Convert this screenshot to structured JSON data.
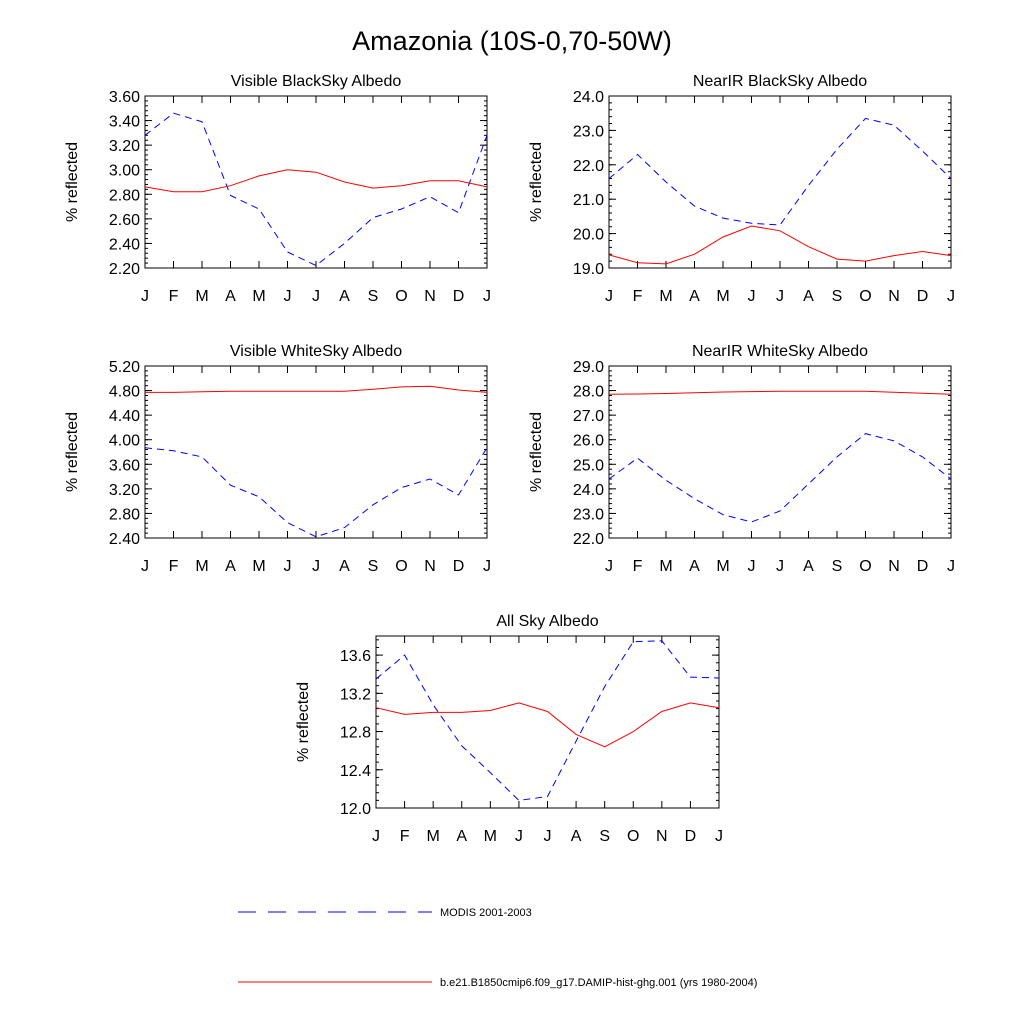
{
  "title": "Amazonia (10S-0,70-50W)",
  "colors": {
    "modis": "#0000ff",
    "model": "#ff0000",
    "axis": "#000000"
  },
  "legend": {
    "modis_label": "MODIS 2001-2003",
    "model_label": "b.e21.B1850cmip6.f09_g17.DAMIP-hist-ghg.001 (yrs 1980-2004)"
  },
  "chart_data": [
    {
      "type": "line",
      "title": "Visible BlackSky Albedo",
      "ylabel": "% reflected",
      "xlabel": "",
      "categories": [
        "J",
        "F",
        "M",
        "A",
        "M",
        "J",
        "J",
        "A",
        "S",
        "O",
        "N",
        "D",
        "J"
      ],
      "ylim": [
        2.2,
        3.6
      ],
      "yticks": [
        "2.20",
        "2.40",
        "2.60",
        "2.80",
        "3.00",
        "3.20",
        "3.40",
        "3.60"
      ],
      "series": [
        {
          "name": "MODIS 2001-2003",
          "style": "dashed",
          "values": [
            3.28,
            3.46,
            3.39,
            2.79,
            2.68,
            2.33,
            2.22,
            2.4,
            2.61,
            2.68,
            2.78,
            2.65,
            3.28
          ]
        },
        {
          "name": "b.e21.B1850cmip6.f09_g17.DAMIP-hist-ghg.001 (yrs 1980-2004)",
          "style": "solid",
          "values": [
            2.86,
            2.82,
            2.82,
            2.87,
            2.95,
            3.0,
            2.98,
            2.9,
            2.85,
            2.87,
            2.91,
            2.91,
            2.86
          ]
        }
      ]
    },
    {
      "type": "line",
      "title": "NearIR BlackSky Albedo",
      "ylabel": "% reflected",
      "xlabel": "",
      "categories": [
        "J",
        "F",
        "M",
        "A",
        "M",
        "J",
        "J",
        "A",
        "S",
        "O",
        "N",
        "D",
        "J"
      ],
      "ylim": [
        19.0,
        24.0
      ],
      "yticks": [
        "19.0",
        "20.0",
        "21.0",
        "22.0",
        "23.0",
        "24.0"
      ],
      "series": [
        {
          "name": "MODIS 2001-2003",
          "style": "dashed",
          "values": [
            21.6,
            22.3,
            21.5,
            20.8,
            20.45,
            20.3,
            20.25,
            21.4,
            22.45,
            23.35,
            23.15,
            22.4,
            21.6
          ]
        },
        {
          "name": "b.e21.B1850cmip6.f09_g17.DAMIP-hist-ghg.001 (yrs 1980-2004)",
          "style": "solid",
          "values": [
            19.38,
            19.15,
            19.12,
            19.4,
            19.9,
            20.22,
            20.08,
            19.62,
            19.26,
            19.2,
            19.36,
            19.48,
            19.36
          ]
        }
      ]
    },
    {
      "type": "line",
      "title": "Visible WhiteSky Albedo",
      "ylabel": "% reflected",
      "xlabel": "",
      "categories": [
        "J",
        "F",
        "M",
        "A",
        "M",
        "J",
        "J",
        "A",
        "S",
        "O",
        "N",
        "D",
        "J"
      ],
      "ylim": [
        2.4,
        5.2
      ],
      "yticks": [
        "2.40",
        "2.80",
        "3.20",
        "3.60",
        "4.00",
        "4.40",
        "4.80",
        "5.20"
      ],
      "series": [
        {
          "name": "MODIS 2001-2003",
          "style": "dashed",
          "values": [
            3.87,
            3.82,
            3.72,
            3.26,
            3.07,
            2.65,
            2.42,
            2.57,
            2.94,
            3.22,
            3.36,
            3.1,
            3.87
          ]
        },
        {
          "name": "b.e21.B1850cmip6.f09_g17.DAMIP-hist-ghg.001 (yrs 1980-2004)",
          "style": "solid",
          "values": [
            4.77,
            4.77,
            4.78,
            4.79,
            4.79,
            4.79,
            4.79,
            4.79,
            4.82,
            4.86,
            4.87,
            4.81,
            4.77
          ]
        }
      ]
    },
    {
      "type": "line",
      "title": "NearIR WhiteSky Albedo",
      "ylabel": "% reflected",
      "xlabel": "",
      "categories": [
        "J",
        "F",
        "M",
        "A",
        "M",
        "J",
        "J",
        "A",
        "S",
        "O",
        "N",
        "D",
        "J"
      ],
      "ylim": [
        22.0,
        29.0
      ],
      "yticks": [
        "22.0",
        "23.0",
        "24.0",
        "25.0",
        "26.0",
        "27.0",
        "28.0",
        "29.0"
      ],
      "series": [
        {
          "name": "MODIS 2001-2003",
          "style": "dashed",
          "values": [
            24.4,
            25.25,
            24.35,
            23.6,
            22.95,
            22.65,
            23.1,
            24.2,
            25.3,
            26.25,
            25.95,
            25.3,
            24.4
          ]
        },
        {
          "name": "b.e21.B1850cmip6.f09_g17.DAMIP-hist-ghg.001 (yrs 1980-2004)",
          "style": "solid",
          "values": [
            27.85,
            27.86,
            27.88,
            27.91,
            27.94,
            27.96,
            27.97,
            27.97,
            27.97,
            27.97,
            27.93,
            27.89,
            27.85
          ]
        }
      ]
    },
    {
      "type": "line",
      "title": "All Sky Albedo",
      "ylabel": "% reflected",
      "xlabel": "",
      "categories": [
        "J",
        "F",
        "M",
        "A",
        "M",
        "J",
        "J",
        "A",
        "S",
        "O",
        "N",
        "D",
        "J"
      ],
      "ylim": [
        12.0,
        13.8
      ],
      "yticks": [
        "12.0",
        "12.4",
        "12.8",
        "13.2",
        "13.6"
      ],
      "ytick_values": [
        12.0,
        12.4,
        12.8,
        13.2,
        13.6
      ],
      "series": [
        {
          "name": "MODIS 2001-2003",
          "style": "dashed",
          "values": [
            13.35,
            13.6,
            13.08,
            12.65,
            12.37,
            12.08,
            12.12,
            12.7,
            13.27,
            13.74,
            13.75,
            13.37,
            13.36
          ]
        },
        {
          "name": "b.e21.B1850cmip6.f09_g17.DAMIP-hist-ghg.001 (yrs 1980-2004)",
          "style": "solid",
          "values": [
            13.05,
            12.98,
            13.0,
            13.0,
            13.02,
            13.1,
            13.01,
            12.77,
            12.64,
            12.8,
            13.01,
            13.1,
            13.05
          ]
        }
      ]
    }
  ]
}
